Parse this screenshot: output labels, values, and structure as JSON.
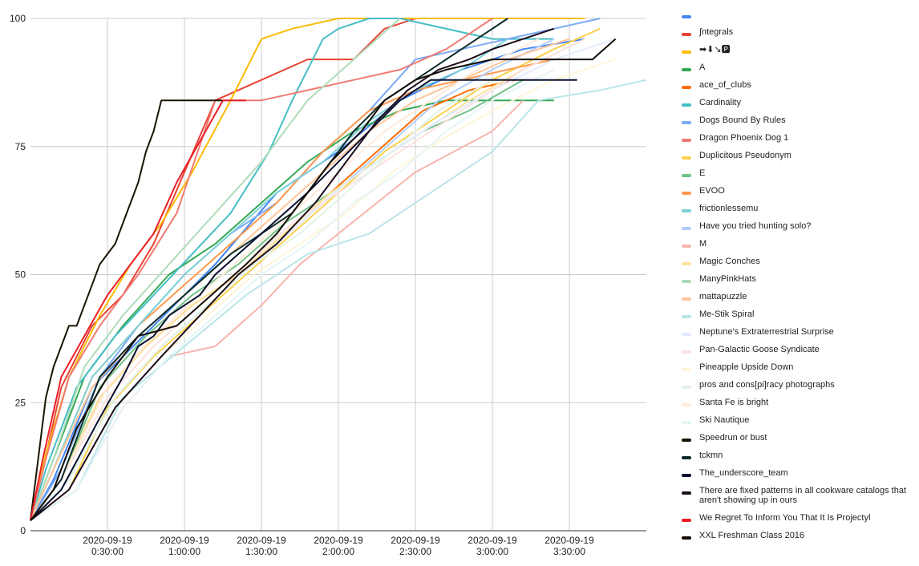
{
  "chart_data": {
    "type": "line",
    "title": "",
    "xlabel": "",
    "ylabel": "",
    "x_unit": "minutes",
    "xlim": [
      0,
      400
    ],
    "ylim": [
      0,
      100
    ],
    "y_ticks": [
      0,
      25,
      50,
      75,
      100
    ],
    "x_ticks": [
      {
        "value": 50,
        "date": "2020-09-19",
        "time": "0:30:00"
      },
      {
        "value": 100,
        "date": "2020-09-19",
        "time": "1:00:00"
      },
      {
        "value": 150,
        "date": "2020-09-19",
        "time": "1:30:00"
      },
      {
        "value": 200,
        "date": "2020-09-19",
        "time": "2:00:00"
      },
      {
        "value": 250,
        "date": "2020-09-19",
        "time": "2:30:00"
      },
      {
        "value": 300,
        "date": "2020-09-19",
        "time": "3:00:00"
      },
      {
        "value": 350,
        "date": "2020-09-19",
        "time": "3:30:00"
      }
    ],
    "grid": true,
    "legend_position": "right",
    "series": [
      {
        "name": "",
        "color": "#4285f4",
        "x": [
          0,
          15,
          40,
          80,
          120,
          160,
          200,
          240,
          280,
          320,
          360
        ],
        "y": [
          2,
          10,
          28,
          40,
          52,
          66,
          74,
          84,
          90,
          94,
          96
        ]
      },
      {
        "name": "∫ntegrals",
        "color": "#ea4335",
        "x": [
          0,
          8,
          20,
          40,
          60,
          80,
          100,
          120,
          150,
          180,
          210,
          230,
          250,
          270
        ],
        "y": [
          2,
          12,
          28,
          40,
          46,
          56,
          70,
          84,
          88,
          92,
          92,
          98,
          100,
          100
        ]
      },
      {
        "name": "➡⬇↘🅿",
        "color": "#fbbc04",
        "x": [
          0,
          10,
          25,
          45,
          65,
          85,
          105,
          130,
          150,
          170,
          200,
          250,
          300,
          360
        ],
        "y": [
          2,
          15,
          30,
          42,
          52,
          60,
          70,
          84,
          96,
          98,
          100,
          100,
          100,
          100
        ]
      },
      {
        "name": "A",
        "color": "#34a853",
        "x": [
          0,
          15,
          35,
          60,
          90,
          120,
          150,
          180,
          210,
          240,
          270,
          300,
          340
        ],
        "y": [
          2,
          14,
          30,
          40,
          50,
          56,
          64,
          72,
          78,
          82,
          84,
          84,
          84
        ]
      },
      {
        "name": "ace_of_clubs",
        "color": "#ff6d01",
        "x": [
          0,
          20,
          45,
          75,
          105,
          135,
          165,
          195,
          225,
          255,
          285,
          315
        ],
        "y": [
          2,
          10,
          26,
          36,
          44,
          50,
          58,
          66,
          74,
          82,
          86,
          88
        ]
      },
      {
        "name": "Cardinality",
        "color": "#46bdc6",
        "x": [
          0,
          10,
          30,
          55,
          80,
          105,
          130,
          155,
          170,
          180,
          190,
          200,
          220,
          240,
          300,
          340
        ],
        "y": [
          2,
          12,
          28,
          38,
          46,
          54,
          62,
          74,
          84,
          90,
          96,
          98,
          100,
          100,
          96,
          96
        ]
      },
      {
        "name": "Dogs Bound By Rules",
        "color": "#7baaf7",
        "x": [
          0,
          20,
          45,
          70,
          100,
          130,
          160,
          190,
          220,
          250,
          280,
          310,
          340,
          370
        ],
        "y": [
          2,
          12,
          30,
          40,
          50,
          58,
          64,
          74,
          82,
          92,
          94,
          96,
          98,
          100
        ]
      },
      {
        "name": "Dragon Phoenix Dog 1",
        "color": "#f07b72",
        "x": [
          0,
          10,
          25,
          45,
          70,
          95,
          120,
          150,
          180,
          210,
          240,
          270,
          300
        ],
        "y": [
          2,
          14,
          30,
          40,
          50,
          62,
          84,
          84,
          86,
          88,
          90,
          94,
          100
        ]
      },
      {
        "name": "Duplicitous Pseudonym",
        "color": "#fcd04f",
        "x": [
          0,
          25,
          50,
          80,
          110,
          140,
          170,
          200,
          230,
          260,
          300,
          340,
          370
        ],
        "y": [
          2,
          8,
          24,
          34,
          42,
          50,
          58,
          66,
          74,
          80,
          88,
          94,
          98
        ]
      },
      {
        "name": "E",
        "color": "#71c287",
        "x": [
          0,
          20,
          45,
          75,
          105,
          135,
          165,
          195,
          225,
          255,
          285,
          320
        ],
        "y": [
          2,
          10,
          28,
          38,
          46,
          52,
          60,
          66,
          72,
          78,
          82,
          88
        ]
      },
      {
        "name": "EVOO",
        "color": "#ff994d",
        "x": [
          0,
          15,
          40,
          70,
          100,
          130,
          160,
          190,
          220,
          250,
          280,
          310,
          340
        ],
        "y": [
          2,
          12,
          30,
          40,
          48,
          56,
          64,
          74,
          82,
          86,
          88,
          90,
          92
        ]
      },
      {
        "name": "frictionlessemu",
        "color": "#7ed1d7",
        "x": [
          0,
          15,
          40,
          70,
          100,
          130,
          160,
          190,
          220,
          250,
          280,
          310
        ],
        "y": [
          2,
          12,
          30,
          40,
          50,
          58,
          66,
          72,
          80,
          86,
          90,
          96
        ]
      },
      {
        "name": "Have you tried hunting solo?",
        "color": "#b3cefb",
        "x": [
          0,
          25,
          55,
          85,
          115,
          145,
          175,
          205,
          235,
          265,
          300,
          340
        ],
        "y": [
          2,
          10,
          26,
          36,
          44,
          52,
          60,
          68,
          76,
          84,
          90,
          96
        ]
      },
      {
        "name": "M",
        "color": "#f7b4ae",
        "x": [
          0,
          30,
          60,
          90,
          120,
          150,
          175,
          200,
          225,
          250,
          275,
          300,
          320
        ],
        "y": [
          2,
          8,
          24,
          34,
          36,
          44,
          52,
          58,
          64,
          70,
          74,
          78,
          84
        ]
      },
      {
        "name": "Magic Conches",
        "color": "#fde49b",
        "x": [
          0,
          20,
          45,
          75,
          105,
          135,
          165,
          195,
          225,
          255,
          285,
          320
        ],
        "y": [
          2,
          10,
          26,
          36,
          44,
          50,
          58,
          66,
          72,
          78,
          84,
          90
        ]
      },
      {
        "name": "ManyPinkHats",
        "color": "#aedcba",
        "x": [
          0,
          15,
          35,
          60,
          90,
          120,
          150,
          180,
          210,
          240
        ],
        "y": [
          2,
          14,
          32,
          42,
          52,
          62,
          72,
          84,
          92,
          100
        ]
      },
      {
        "name": "mattapuzzle",
        "color": "#ffc599",
        "x": [
          0,
          15,
          40,
          70,
          100,
          130,
          160,
          190,
          220,
          250,
          280,
          310,
          350
        ],
        "y": [
          2,
          12,
          28,
          38,
          46,
          54,
          62,
          70,
          78,
          84,
          88,
          92,
          96
        ]
      },
      {
        "name": "Me-Stik Spiral",
        "color": "#b8e5e8",
        "x": [
          0,
          30,
          60,
          100,
          140,
          180,
          220,
          240,
          260,
          280,
          300,
          330,
          370,
          400
        ],
        "y": [
          2,
          8,
          26,
          36,
          46,
          54,
          58,
          62,
          66,
          70,
          74,
          84,
          86,
          88
        ]
      },
      {
        "name": "Neptune's Extraterrestrial Surprise",
        "color": "#e0ebfd",
        "x": [
          0,
          25,
          55,
          85,
          115,
          145,
          175,
          205,
          235,
          265,
          300,
          340,
          380
        ],
        "y": [
          2,
          10,
          26,
          36,
          44,
          52,
          60,
          68,
          74,
          80,
          86,
          92,
          96
        ]
      },
      {
        "name": "Pan-Galactic Goose Syndicate",
        "color": "#fbe1df",
        "x": [
          0,
          20,
          50,
          80,
          110,
          140,
          170,
          200,
          230,
          260,
          290,
          320,
          360
        ],
        "y": [
          2,
          10,
          26,
          36,
          44,
          52,
          60,
          66,
          72,
          78,
          84,
          90,
          96
        ]
      },
      {
        "name": "Pineapple Upside Down",
        "color": "#fef5d7",
        "x": [
          0,
          25,
          55,
          85,
          115,
          145,
          175,
          205,
          235,
          265,
          300,
          340,
          380
        ],
        "y": [
          2,
          8,
          24,
          34,
          42,
          50,
          56,
          62,
          70,
          76,
          82,
          88,
          92
        ]
      },
      {
        "name": "pros and cons[pi]racy photographs",
        "color": "#e3f3e7",
        "x": [
          0,
          25,
          55,
          85,
          115,
          145,
          175,
          205,
          235,
          265,
          300
        ],
        "y": [
          2,
          10,
          26,
          36,
          44,
          52,
          58,
          66,
          74,
          82,
          88
        ]
      },
      {
        "name": "Santa Fe is bright",
        "color": "#ffeadb",
        "x": [
          0,
          20,
          50,
          80,
          110,
          140,
          170,
          200,
          230,
          260,
          290,
          330
        ],
        "y": [
          2,
          10,
          28,
          38,
          46,
          54,
          62,
          70,
          78,
          84,
          90,
          96
        ]
      },
      {
        "name": "Ski Nautique",
        "color": "#e5f5f6",
        "x": [
          0,
          30,
          60,
          90,
          120,
          150,
          180,
          210,
          240,
          270,
          300,
          340
        ],
        "y": [
          2,
          8,
          24,
          34,
          42,
          50,
          56,
          64,
          70,
          78,
          84,
          90
        ]
      },
      {
        "name": "Speedrun or bust",
        "color": "#1a1300",
        "x": [
          0,
          5,
          10,
          15,
          20,
          25,
          30,
          35,
          40,
          45,
          50,
          55,
          60,
          65,
          70,
          75,
          80,
          85,
          95,
          125
        ],
        "y": [
          2,
          14,
          26,
          32,
          36,
          40,
          40,
          44,
          48,
          52,
          54,
          56,
          60,
          64,
          68,
          74,
          78,
          84,
          84,
          84
        ]
      },
      {
        "name": "tckmn",
        "color": "#0b2a2a",
        "x": [
          0,
          20,
          45,
          70,
          100,
          130,
          150,
          170,
          190,
          210,
          230,
          250,
          270,
          290,
          310
        ],
        "y": [
          2,
          10,
          30,
          38,
          46,
          54,
          58,
          62,
          70,
          78,
          84,
          88,
          92,
          96,
          100
        ]
      },
      {
        "name": "The_underscore_team",
        "color": "#0a0f2e",
        "x": [
          0,
          20,
          45,
          60,
          70,
          80,
          90,
          100,
          110,
          120,
          135,
          150,
          165,
          180,
          200,
          220,
          240,
          260,
          280,
          300,
          320,
          340,
          355
        ],
        "y": [
          2,
          8,
          22,
          30,
          36,
          38,
          42,
          44,
          46,
          50,
          54,
          58,
          62,
          66,
          72,
          78,
          84,
          88,
          88,
          88,
          88,
          88,
          88
        ]
      },
      {
        "name": "There are fixed patterns in all cookware catalogs that aren't showing up in ours",
        "color": "#1c0d1c",
        "x": [
          0,
          25,
          55,
          85,
          110,
          135,
          160,
          185,
          205,
          225,
          245,
          265,
          285,
          300,
          320,
          340
        ],
        "y": [
          2,
          8,
          24,
          34,
          42,
          50,
          56,
          64,
          72,
          80,
          86,
          90,
          92,
          94,
          96,
          98
        ]
      },
      {
        "name": "We Regret To Inform You That It Is Projectyl",
        "color": "#ea1d25",
        "x": [
          0,
          8,
          20,
          35,
          50,
          65,
          80,
          95,
          110,
          125,
          140
        ],
        "y": [
          2,
          14,
          30,
          38,
          46,
          52,
          58,
          68,
          76,
          84,
          84
        ]
      },
      {
        "name": "XXL Freshman Class 2016",
        "color": "#140c05",
        "x": [
          0,
          15,
          30,
          50,
          70,
          95,
          110,
          125,
          140,
          160,
          175,
          195,
          215,
          230,
          250,
          270,
          300,
          330,
          365,
          380
        ],
        "y": [
          2,
          8,
          20,
          30,
          38,
          40,
          44,
          48,
          52,
          58,
          64,
          72,
          78,
          84,
          88,
          90,
          92,
          92,
          92,
          96
        ]
      }
    ]
  }
}
